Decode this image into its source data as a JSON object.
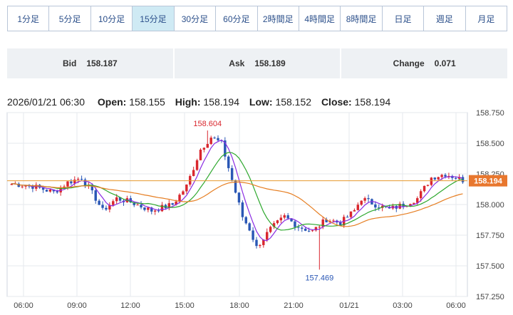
{
  "timeframes": [
    {
      "label": "1分足",
      "active": false
    },
    {
      "label": "5分足",
      "active": false
    },
    {
      "label": "10分足",
      "active": false
    },
    {
      "label": "15分足",
      "active": true
    },
    {
      "label": "30分足",
      "active": false
    },
    {
      "label": "60分足",
      "active": false
    },
    {
      "label": "2時間足",
      "active": false
    },
    {
      "label": "4時間足",
      "active": false
    },
    {
      "label": "8時間足",
      "active": false
    },
    {
      "label": "日足",
      "active": false
    },
    {
      "label": "週足",
      "active": false
    },
    {
      "label": "月足",
      "active": false
    }
  ],
  "quote": {
    "bid_label": "Bid",
    "bid_value": "158.187",
    "ask_label": "Ask",
    "ask_value": "158.189",
    "change_label": "Change",
    "change_value": "0.071"
  },
  "ohlc": {
    "datetime": "2026/01/21 06:30",
    "open_label": "Open:",
    "open_value": "158.155",
    "high_label": "High:",
    "high_value": "158.194",
    "low_label": "Low:",
    "low_value": "158.152",
    "close_label": "Close:",
    "close_value": "158.194"
  },
  "colors": {
    "up": "#d9272e",
    "down": "#2a57b5",
    "ma_short": "#8a2be2",
    "ma_mid": "#2ea82e",
    "ma_long": "#e67e22",
    "price_line": "#e69a2e",
    "accent": "#cfeaf4"
  },
  "chart_data": {
    "type": "candlestick",
    "y_ticks": [
      "158.750",
      "158.500",
      "158.250",
      "158.000",
      "157.750",
      "157.500",
      "157.250"
    ],
    "ylim": [
      157.25,
      158.75
    ],
    "x_ticks": [
      "06:00",
      "09:00",
      "12:00",
      "15:00",
      "18:00",
      "21:00",
      "01/21",
      "03:00",
      "06:00"
    ],
    "current_price": "158.194",
    "high_annotation": "158.604",
    "low_annotation": "157.469",
    "grid": true
  }
}
